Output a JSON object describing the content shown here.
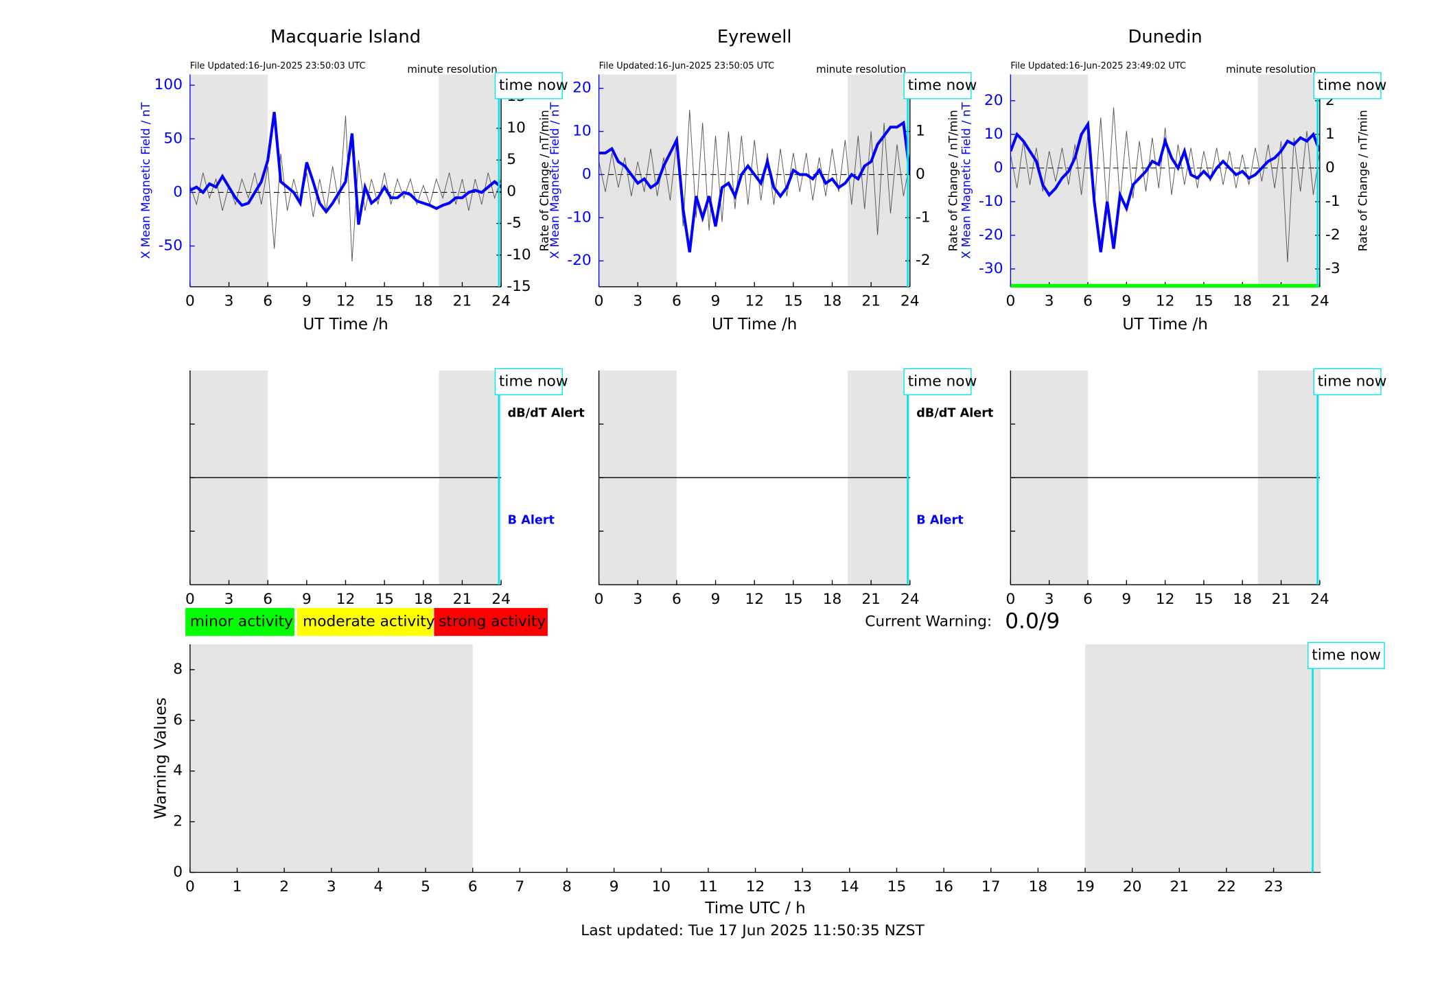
{
  "chart_data": [
    {
      "type": "line",
      "title": "Macquarie Island",
      "file_updated": "File Updated:16-Jun-2025 23:50:03 UTC",
      "resolution": "minute resolution",
      "time_now_label": "time now",
      "time_now": 23.83,
      "xlabel": "UT Time /h",
      "ylabel": "X Mean Magnetic Field / nT",
      "y2label": "Rate of Change / nT/min",
      "xlim": [
        0,
        24
      ],
      "xticks": [
        0,
        3,
        6,
        9,
        12,
        15,
        18,
        21,
        24
      ],
      "ylim": [
        -88,
        110
      ],
      "yticks": [
        -50,
        0,
        50,
        100
      ],
      "y2lim": [
        -15,
        18.5
      ],
      "y2ticks": [
        -15,
        -10,
        -5,
        0,
        5,
        10,
        15
      ],
      "hline": 0,
      "shaded": [
        [
          0,
          6
        ],
        [
          19.2,
          24
        ]
      ],
      "x": [
        0,
        0.5,
        1,
        1.5,
        2,
        2.5,
        3,
        3.5,
        4,
        4.5,
        5,
        5.5,
        6,
        6.5,
        7,
        7.5,
        8,
        8.5,
        9,
        9.5,
        10,
        10.5,
        11,
        11.5,
        12,
        12.5,
        13,
        13.5,
        14,
        14.5,
        15,
        15.5,
        16,
        16.5,
        17,
        17.5,
        18,
        18.5,
        19,
        19.5,
        20,
        20.5,
        21,
        21.5,
        22,
        22.5,
        23,
        23.5,
        24
      ],
      "series": [
        {
          "color": "#555555",
          "axis": "y2",
          "values": [
            1,
            -2,
            3,
            -1,
            2,
            -3,
            1,
            -2,
            2,
            -1,
            3,
            -2,
            4,
            -9,
            6,
            -3,
            2,
            -2,
            3,
            -4,
            2,
            -3,
            4,
            -2,
            12,
            -11,
            5,
            -3,
            2,
            -2,
            3,
            -2,
            2,
            -1,
            2,
            -2,
            1,
            -2,
            2,
            -1,
            3,
            -2,
            2,
            -3,
            2,
            -2,
            3,
            -1,
            2
          ]
        },
        {
          "color": "#0000ff",
          "values": [
            2,
            5,
            0,
            8,
            5,
            15,
            5,
            -5,
            -12,
            -10,
            0,
            10,
            30,
            75,
            10,
            5,
            0,
            -10,
            28,
            10,
            -10,
            -18,
            -10,
            0,
            10,
            55,
            -30,
            5,
            -10,
            -5,
            5,
            -5,
            -5,
            0,
            -2,
            -8,
            -10,
            -12,
            -15,
            -12,
            -10,
            -5,
            -5,
            0,
            2,
            0,
            5,
            10,
            5
          ]
        }
      ]
    },
    {
      "type": "line",
      "title": "Eyrewell",
      "file_updated": "File Updated:16-Jun-2025 23:50:05 UTC",
      "resolution": "minute resolution",
      "time_now_label": "time now",
      "time_now": 23.83,
      "ylabel": "X Mean Magnetic Field / nT",
      "xlabel": "UT Time /h",
      "y2label": "Rate of Change / nT/min",
      "xlim": [
        0,
        24
      ],
      "xticks": [
        0,
        3,
        6,
        9,
        12,
        15,
        18,
        21,
        24
      ],
      "ylim": [
        -26,
        23.2
      ],
      "yticks": [
        -20,
        -10,
        0,
        10,
        20
      ],
      "y2lim": [
        -2.6,
        2.32
      ],
      "y2ticks": [
        -2,
        -1,
        0,
        1,
        2
      ],
      "hline": 0,
      "shaded": [
        [
          0,
          6
        ],
        [
          19.2,
          24
        ]
      ],
      "x": [
        0,
        0.5,
        1,
        1.5,
        2,
        2.5,
        3,
        3.5,
        4,
        4.5,
        5,
        5.5,
        6,
        6.5,
        7,
        7.5,
        8,
        8.5,
        9,
        9.5,
        10,
        10.5,
        11,
        11.5,
        12,
        12.5,
        13,
        13.5,
        14,
        14.5,
        15,
        15.5,
        16,
        16.5,
        17,
        17.5,
        18,
        18.5,
        19,
        19.5,
        20,
        20.5,
        21,
        21.5,
        22,
        22.5,
        23,
        23.5,
        24
      ],
      "series": [
        {
          "color": "#555555",
          "axis": "y2",
          "values": [
            0.3,
            -0.4,
            0.5,
            -0.3,
            0.4,
            -0.5,
            0.3,
            -0.4,
            0.6,
            -0.5,
            0.4,
            -0.6,
            0.8,
            -1.2,
            1.5,
            -1,
            1.2,
            -1.3,
            0.9,
            -1.1,
            1,
            -0.8,
            0.9,
            -0.7,
            0.8,
            -0.6,
            0.5,
            -0.7,
            0.6,
            -0.5,
            0.5,
            -0.4,
            0.5,
            -0.6,
            0.4,
            -0.5,
            0.6,
            -0.4,
            0.8,
            -0.7,
            0.9,
            -0.8,
            1,
            -1.4,
            1.2,
            -0.9,
            0.7,
            -0.5,
            0.3
          ]
        },
        {
          "color": "#0000ff",
          "values": [
            5,
            5,
            6,
            3,
            2,
            0,
            -2,
            -1,
            -3,
            -2,
            2,
            5,
            8,
            -8,
            -18,
            -5,
            -10,
            -5,
            -12,
            -3,
            -2,
            -5,
            0,
            2,
            0,
            -2,
            3,
            -3,
            -5,
            -3,
            1,
            0,
            0,
            -1,
            1,
            -2,
            -1,
            -3,
            -2,
            0,
            -1,
            2,
            3,
            7,
            9,
            11,
            11,
            12,
            0
          ]
        }
      ]
    },
    {
      "type": "line",
      "title": "Dunedin",
      "file_updated": "File Updated:16-Jun-2025 23:49:02 UTC",
      "resolution": "minute resolution",
      "time_now_label": "time now",
      "time_now": 23.83,
      "xlabel": "UT Time /h",
      "ylabel": "X Mean Magnetic Field / nT",
      "y2label": "Rate of Change / nT/min",
      "xlim": [
        0,
        24
      ],
      "xticks": [
        0,
        3,
        6,
        9,
        12,
        15,
        18,
        21,
        24
      ],
      "ylim": [
        -35.3,
        27.8
      ],
      "yticks": [
        -30,
        -20,
        -10,
        0,
        10,
        20
      ],
      "y2lim": [
        -3.53,
        2.78
      ],
      "y2ticks": [
        -3,
        -2,
        -1,
        0,
        1,
        2
      ],
      "hline": 0,
      "shaded": [
        [
          0,
          6
        ],
        [
          19.2,
          24
        ]
      ],
      "band": {
        "color": "#00ff00",
        "y": -35
      },
      "x": [
        0,
        0.5,
        1,
        1.5,
        2,
        2.5,
        3,
        3.5,
        4,
        4.5,
        5,
        5.5,
        6,
        6.5,
        7,
        7.5,
        8,
        8.5,
        9,
        9.5,
        10,
        10.5,
        11,
        11.5,
        12,
        12.5,
        13,
        13.5,
        14,
        14.5,
        15,
        15.5,
        16,
        16.5,
        17,
        17.5,
        18,
        18.5,
        19,
        19.5,
        20,
        20.5,
        21,
        21.5,
        22,
        22.5,
        23,
        23.5,
        24
      ],
      "series": [
        {
          "color": "#555555",
          "axis": "y2",
          "values": [
            0.4,
            -0.6,
            0.8,
            -0.5,
            0.6,
            -0.7,
            0.5,
            -0.4,
            0.6,
            -0.5,
            0.7,
            -0.8,
            1,
            -1.2,
            1.5,
            -1.3,
            1.8,
            -1,
            1.1,
            -0.9,
            0.8,
            -0.7,
            0.9,
            -0.6,
            1.2,
            -0.8,
            0.7,
            -0.5,
            0.6,
            -0.6,
            0.5,
            -0.4,
            0.6,
            -0.5,
            0.5,
            -0.6,
            0.4,
            -0.5,
            0.6,
            -0.4,
            0.7,
            -0.6,
            0.8,
            -2.8,
            0.9,
            -0.7,
            1.1,
            -0.8,
            0.5
          ]
        },
        {
          "color": "#0000ff",
          "values": [
            5,
            10,
            8,
            5,
            2,
            -5,
            -8,
            -6,
            -3,
            -1,
            3,
            10,
            13,
            -10,
            -25,
            -10,
            -24,
            -8,
            -12,
            -5,
            -3,
            -1,
            2,
            1,
            8,
            3,
            0,
            5,
            -2,
            -3,
            -1,
            -3,
            0,
            2,
            0,
            -2,
            -1,
            -3,
            -2,
            0,
            2,
            3,
            5,
            8,
            7,
            9,
            8,
            10,
            5
          ]
        }
      ]
    },
    {
      "type": "alert",
      "time_now_label": "time now",
      "time_now": 23.83,
      "labels": [
        "dB/dT Alert",
        "B Alert"
      ],
      "label_colors": [
        "#000000",
        "#0000ff"
      ],
      "xlim": [
        0,
        24
      ],
      "xticks": [
        0,
        3,
        6,
        9,
        12,
        15,
        18,
        21,
        24
      ],
      "shaded": [
        [
          0,
          6
        ],
        [
          19.2,
          24
        ]
      ]
    },
    {
      "type": "alert",
      "time_now_label": "time now",
      "time_now": 23.83,
      "labels": [
        "dB/dT Alert",
        "B Alert"
      ],
      "label_colors": [
        "#000000",
        "#0000ff"
      ],
      "xlim": [
        0,
        24
      ],
      "xticks": [
        0,
        3,
        6,
        9,
        12,
        15,
        18,
        21,
        24
      ],
      "shaded": [
        [
          0,
          6
        ],
        [
          19.2,
          24
        ]
      ]
    },
    {
      "type": "alert",
      "time_now_label": "time now",
      "time_now": 23.83,
      "xlim": [
        0,
        24
      ],
      "xticks": [
        0,
        3,
        6,
        9,
        12,
        15,
        18,
        21,
        24
      ],
      "shaded": [
        [
          0,
          6
        ],
        [
          19.2,
          24
        ]
      ]
    },
    {
      "type": "warning",
      "time_now_label": "time now",
      "time_now": 23.83,
      "xlabel": "Time UTC / h",
      "ylabel": "Warning Values",
      "xlim": [
        0,
        24
      ],
      "xticks": [
        0,
        1,
        2,
        3,
        4,
        5,
        6,
        7,
        8,
        9,
        10,
        11,
        12,
        13,
        14,
        15,
        16,
        17,
        18,
        19,
        20,
        21,
        22,
        23
      ],
      "ylim": [
        0,
        9
      ],
      "yticks": [
        0,
        2,
        4,
        6,
        8
      ],
      "shaded": [
        [
          0,
          6
        ],
        [
          19,
          24
        ]
      ]
    }
  ],
  "activity_legend": [
    {
      "label": "minor activity",
      "color": "#00ff00"
    },
    {
      "label": "moderate activity",
      "color": "#ffff00"
    },
    {
      "label": "strong activity",
      "color": "#ff0000"
    }
  ],
  "current_warning": {
    "label": "Current Warning:",
    "value": "0.0/9"
  },
  "footer": "Last updated: Tue 17 Jun 2025 11:50:35 NZST"
}
